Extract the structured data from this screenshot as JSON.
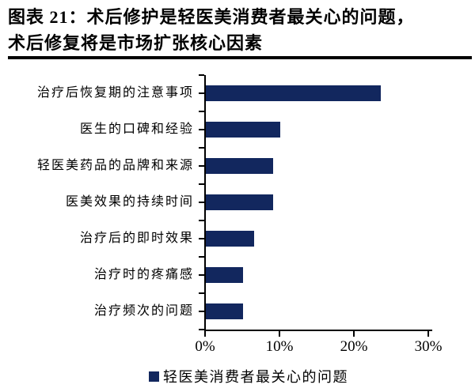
{
  "figure": {
    "title_line1": "图表 21：术后修护是轻医美消费者最关心的问题，",
    "title_line2": "术后修复将是市场扩张核心因素"
  },
  "chart_data": {
    "type": "bar",
    "orientation": "horizontal",
    "title": "",
    "categories": [
      "治疗后恢复期的注意事项",
      "医生的口碑和经验",
      "轻医美药品的品牌和来源",
      "医美效果的持续时间",
      "治疗后的即时效果",
      "治疗时的疼痛感",
      "治疗频次的问题"
    ],
    "values": [
      23.5,
      10,
      9,
      9,
      6.5,
      5,
      5
    ],
    "unit": "percent",
    "xlim": [
      0,
      30
    ],
    "x_tick_values": [
      0,
      10,
      20,
      30
    ],
    "x_tick_labels": [
      "0%",
      "10%",
      "20%",
      "30%"
    ],
    "grid": false,
    "legend_position": "bottom",
    "legend": [
      {
        "label": "轻医美消费者最关心的问题",
        "color": "#12275E"
      }
    ],
    "bar_color": "#12275E",
    "axis_color": "#000000",
    "background_color": "#FFFFFF",
    "title_color": "#000000"
  }
}
